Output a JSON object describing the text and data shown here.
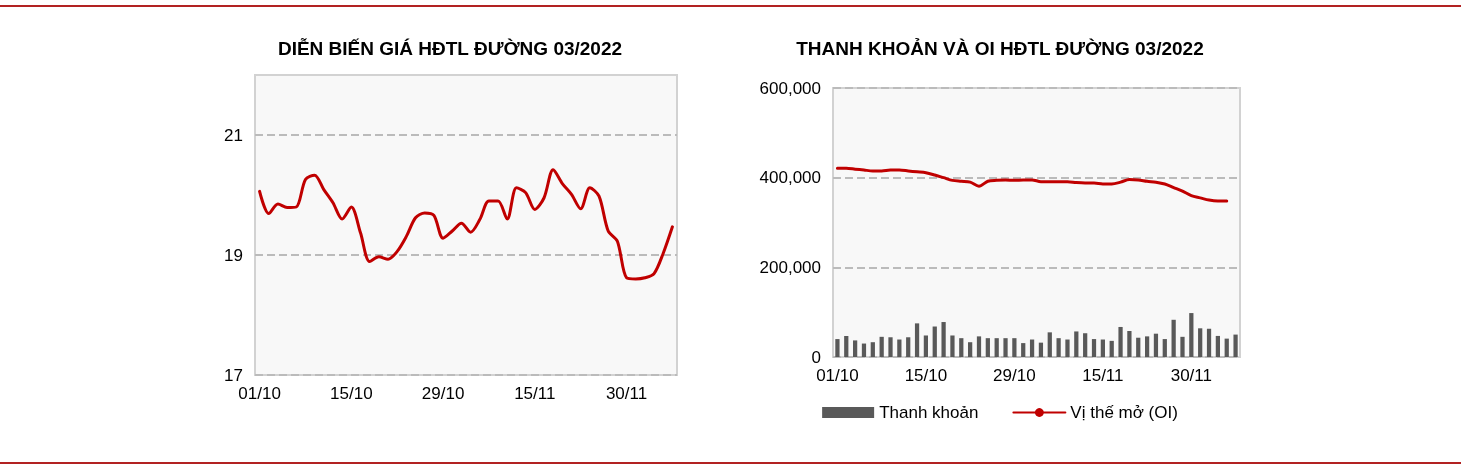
{
  "chart_data": [
    {
      "type": "line",
      "title": "DIỄN BIẾN GIÁ HĐTL ĐƯỜNG 03/2022",
      "categories": [
        "01/10",
        null,
        null,
        null,
        null,
        null,
        null,
        null,
        null,
        null,
        "15/10",
        null,
        null,
        null,
        null,
        null,
        null,
        null,
        null,
        null,
        "29/10",
        null,
        null,
        null,
        null,
        null,
        null,
        null,
        null,
        null,
        "15/11",
        null,
        null,
        null,
        null,
        null,
        null,
        null,
        null,
        null,
        "30/11",
        null,
        null,
        null,
        null,
        null
      ],
      "values": [
        20.06,
        19.69,
        19.85,
        19.79,
        19.8,
        20.26,
        20.33,
        20.09,
        19.87,
        19.6,
        19.8,
        19.37,
        18.89,
        18.97,
        18.93,
        19.06,
        19.31,
        19.62,
        19.7,
        19.66,
        19.28,
        19.4,
        19.53,
        19.38,
        19.59,
        19.9,
        19.9,
        19.6,
        20.12,
        20.04,
        19.76,
        19.95,
        20.42,
        20.19,
        20.01,
        19.77,
        20.12,
        19.98,
        19.4,
        19.23,
        18.62,
        18.6,
        18.62,
        18.69,
        19.03,
        19.47
      ],
      "color": "#c00000",
      "ylim": [
        17,
        22
      ],
      "yticks": [
        17,
        19,
        21
      ],
      "grid": "y",
      "marker": "none",
      "line_style": "solid",
      "legend": false
    },
    {
      "type": "bar",
      "title": "THANH KHOẢN VÀ OI HĐTL ĐƯỜNG 03/2022",
      "categories": [
        "01/10",
        null,
        null,
        null,
        null,
        null,
        null,
        null,
        null,
        null,
        "15/10",
        null,
        null,
        null,
        null,
        null,
        null,
        null,
        null,
        null,
        "29/10",
        null,
        null,
        null,
        null,
        null,
        null,
        null,
        null,
        null,
        "15/11",
        null,
        null,
        null,
        null,
        null,
        null,
        null,
        null,
        null,
        "30/11",
        null,
        null,
        null,
        null,
        null
      ],
      "series": [
        {
          "name": "Thanh khoản",
          "color": "#595959",
          "values": [
            40000,
            47000,
            37000,
            30000,
            33000,
            45000,
            44000,
            39000,
            44000,
            75000,
            48000,
            68000,
            78000,
            48000,
            42000,
            33000,
            46000,
            42000,
            42000,
            42000,
            42000,
            31000,
            39000,
            32000,
            55000,
            42000,
            39000,
            57000,
            53000,
            40000,
            39000,
            36000,
            67000,
            58000,
            43000,
            46000,
            52000,
            40000,
            83000,
            45000,
            98000,
            64000,
            63000,
            47000,
            41000,
            50000
          ]
        },
        {
          "name": "Vị thế mở (OI)",
          "type": "line",
          "color": "#c00000",
          "values": [
            421000,
            421000,
            419000,
            417000,
            415000,
            415000,
            417000,
            417000,
            415000,
            413000,
            411000,
            406000,
            400000,
            394000,
            392000,
            390000,
            381000,
            392000,
            394000,
            395000,
            394000,
            395000,
            395000,
            391000,
            391000,
            391000,
            391000,
            389000,
            388000,
            388000,
            386000,
            386000,
            390000,
            396000,
            395000,
            392000,
            390000,
            386000,
            378000,
            370000,
            360000,
            355000,
            350000,
            348000,
            348000,
            null
          ]
        }
      ],
      "ylim": [
        0,
        600000
      ],
      "yticks": [
        0,
        {
          "value": 200000,
          "label": "200,000"
        },
        {
          "value": 400000,
          "label": "400,000"
        },
        {
          "value": 600000,
          "label": "600,000"
        }
      ],
      "grid": "y",
      "marker": "none",
      "line_style": "solid",
      "legend": "bottom"
    }
  ]
}
